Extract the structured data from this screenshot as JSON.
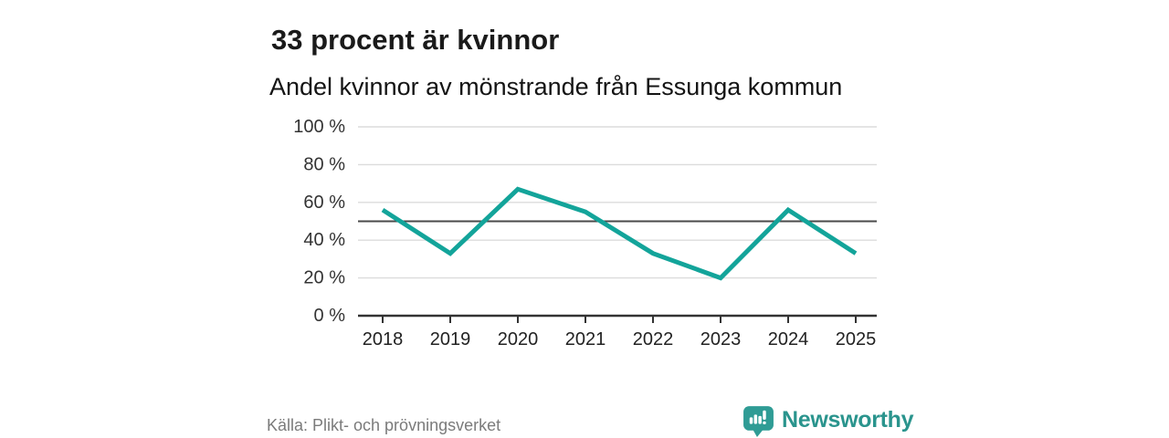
{
  "chart_data": {
    "type": "line",
    "title": "33 procent är kvinnor",
    "subtitle": "Andel kvinnor av mönstrande från Essunga kommun",
    "categories": [
      "2018",
      "2019",
      "2020",
      "2021",
      "2022",
      "2023",
      "2024",
      "2025"
    ],
    "values": [
      56,
      33,
      67,
      55,
      33,
      20,
      56,
      33
    ],
    "unit": "%",
    "xlabel": "",
    "ylabel": "",
    "ylim": [
      0,
      100
    ],
    "yticks": [
      {
        "value": 0,
        "label": "0 %"
      },
      {
        "value": 20,
        "label": "20 %"
      },
      {
        "value": 40,
        "label": "40 %"
      },
      {
        "value": 60,
        "label": "60 %"
      },
      {
        "value": 80,
        "label": "80 %"
      },
      {
        "value": 100,
        "label": "100 %"
      }
    ],
    "reference_line": 50,
    "grid": true,
    "legend": "none"
  },
  "footer": {
    "source": "Källa: Plikt- och prövningsverket",
    "brand": "Newsworthy"
  },
  "colors": {
    "line": "#13a49a",
    "grid": "#dcdcdc",
    "axis": "#333333",
    "axis_text": "#333333",
    "x_label_text": "#222222",
    "reference": "#4a4a4a",
    "title_text": "#1a1a1a",
    "source_text": "#7b7b7b",
    "logo_icon": "#2f9c95",
    "logo_text": "#2a948d"
  }
}
